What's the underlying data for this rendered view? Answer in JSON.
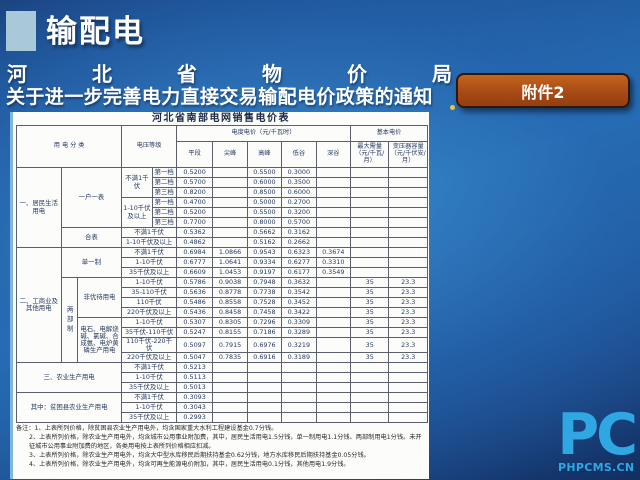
{
  "header": {
    "title": "输配电",
    "subtitle_line1": "河北省物价局",
    "subtitle_line2": "关于进一步完善电力直接交易输配电价政策的通知",
    "badge_label": "附件2"
  },
  "colors": {
    "background_blue": "#2570b6",
    "badge_orange": "#a84a14",
    "title_square_blue": "#a9c8d8",
    "logo_blue": "#2fa7e3"
  },
  "table": {
    "title": "河北省南部电网销售电价表",
    "header_rows": [
      [
        {
          "t": "用  电  分  类",
          "cs": 3,
          "rs": 2
        },
        {
          "t": "电压等级",
          "cs": 2,
          "rs": 2
        },
        {
          "t": "电度电价（元/千瓦时）",
          "cs": 5
        },
        {
          "t": "基本电价",
          "cs": 2
        }
      ],
      [
        {
          "t": "平段"
        },
        {
          "t": "尖峰"
        },
        {
          "t": "高峰"
        },
        {
          "t": "低谷"
        },
        {
          "t": "深谷"
        },
        {
          "t": "最大需量（元/千瓦/月）"
        },
        {
          "t": "变压器容量（元/千伏安/月）"
        }
      ]
    ],
    "body_rows": [
      [
        {
          "t": "一、居民生活用电",
          "rs": 8
        },
        {
          "t": "一户一表",
          "cs": 2,
          "rs": 6
        },
        {
          "t": "不满1千伏",
          "rs": 3
        },
        {
          "t": "第一档"
        },
        {
          "t": "0.5200",
          "c": "num"
        },
        {
          "t": ""
        },
        {
          "t": "0.5500",
          "c": "num"
        },
        {
          "t": "0.3000",
          "c": "num"
        },
        {
          "t": ""
        },
        {
          "t": ""
        },
        {
          "t": ""
        }
      ],
      [
        {
          "t": "第二档"
        },
        {
          "t": "0.5700",
          "c": "num"
        },
        {
          "t": ""
        },
        {
          "t": "0.6000",
          "c": "num"
        },
        {
          "t": "0.3500",
          "c": "num"
        },
        {
          "t": ""
        },
        {
          "t": ""
        },
        {
          "t": ""
        }
      ],
      [
        {
          "t": "第三档"
        },
        {
          "t": "0.8200",
          "c": "num"
        },
        {
          "t": ""
        },
        {
          "t": "0.8500",
          "c": "num"
        },
        {
          "t": "0.6000",
          "c": "num"
        },
        {
          "t": ""
        },
        {
          "t": ""
        },
        {
          "t": ""
        }
      ],
      [
        {
          "t": "1-10千伏及以上",
          "rs": 3
        },
        {
          "t": "第一档"
        },
        {
          "t": "0.4700",
          "c": "num"
        },
        {
          "t": ""
        },
        {
          "t": "0.5000",
          "c": "num"
        },
        {
          "t": "0.2700",
          "c": "num"
        },
        {
          "t": ""
        },
        {
          "t": ""
        },
        {
          "t": ""
        }
      ],
      [
        {
          "t": "第二档"
        },
        {
          "t": "0.5200",
          "c": "num"
        },
        {
          "t": ""
        },
        {
          "t": "0.5500",
          "c": "num"
        },
        {
          "t": "0.3200",
          "c": "num"
        },
        {
          "t": ""
        },
        {
          "t": ""
        },
        {
          "t": ""
        }
      ],
      [
        {
          "t": "第三档"
        },
        {
          "t": "0.7700",
          "c": "num"
        },
        {
          "t": ""
        },
        {
          "t": "0.8000",
          "c": "num"
        },
        {
          "t": "0.5700",
          "c": "num"
        },
        {
          "t": ""
        },
        {
          "t": ""
        },
        {
          "t": ""
        }
      ],
      [
        {
          "t": "合表",
          "cs": 2,
          "rs": 2
        },
        {
          "t": "不满1千伏",
          "cs": 2
        },
        {
          "t": "0.5362",
          "c": "num"
        },
        {
          "t": ""
        },
        {
          "t": "0.5662",
          "c": "num"
        },
        {
          "t": "0.3162",
          "c": "num"
        },
        {
          "t": ""
        },
        {
          "t": ""
        },
        {
          "t": ""
        }
      ],
      [
        {
          "t": "1-10千伏及以上",
          "cs": 2
        },
        {
          "t": "0.4862",
          "c": "num"
        },
        {
          "t": ""
        },
        {
          "t": "0.5162",
          "c": "num"
        },
        {
          "t": "0.2662",
          "c": "num"
        },
        {
          "t": ""
        },
        {
          "t": ""
        },
        {
          "t": ""
        }
      ],
      [
        {
          "t": "二、工商业及其他用电",
          "rs": 11
        },
        {
          "t": "单一制",
          "cs": 2,
          "rs": 3
        },
        {
          "t": "不满1千伏",
          "cs": 2
        },
        {
          "t": "0.6984",
          "c": "num"
        },
        {
          "t": "1.0866",
          "c": "num"
        },
        {
          "t": "0.9543",
          "c": "num"
        },
        {
          "t": "0.6323",
          "c": "num"
        },
        {
          "t": "0.3674",
          "c": "num"
        },
        {
          "t": ""
        },
        {
          "t": ""
        }
      ],
      [
        {
          "t": "1-10千伏",
          "cs": 2
        },
        {
          "t": "0.6777",
          "c": "num"
        },
        {
          "t": "1.0641",
          "c": "num"
        },
        {
          "t": "0.9334",
          "c": "num"
        },
        {
          "t": "0.6277",
          "c": "num"
        },
        {
          "t": "0.3310",
          "c": "num"
        },
        {
          "t": ""
        },
        {
          "t": ""
        }
      ],
      [
        {
          "t": "35千伏及以上",
          "cs": 2
        },
        {
          "t": "0.6609",
          "c": "num"
        },
        {
          "t": "1.0453",
          "c": "num"
        },
        {
          "t": "0.9197",
          "c": "num"
        },
        {
          "t": "0.6177",
          "c": "num"
        },
        {
          "t": "0.3549",
          "c": "num"
        },
        {
          "t": ""
        },
        {
          "t": ""
        }
      ],
      [
        {
          "t": "两部制",
          "rs": 8,
          "c": "vert"
        },
        {
          "t": "非优待用电",
          "rs": 4
        },
        {
          "t": "1-10千伏",
          "cs": 2
        },
        {
          "t": "0.5786",
          "c": "num"
        },
        {
          "t": "0.9038",
          "c": "num"
        },
        {
          "t": "0.7948",
          "c": "num"
        },
        {
          "t": "0.3632",
          "c": "num"
        },
        {
          "t": ""
        },
        {
          "t": "35",
          "c": "num"
        },
        {
          "t": "23.3",
          "c": "num"
        }
      ],
      [
        {
          "t": "35-110千伏",
          "cs": 2
        },
        {
          "t": "0.5636",
          "c": "num"
        },
        {
          "t": "0.8778",
          "c": "num"
        },
        {
          "t": "0.7738",
          "c": "num"
        },
        {
          "t": "0.3542",
          "c": "num"
        },
        {
          "t": ""
        },
        {
          "t": "35",
          "c": "num"
        },
        {
          "t": "23.3",
          "c": "num"
        }
      ],
      [
        {
          "t": "110千伏",
          "cs": 2
        },
        {
          "t": "0.5486",
          "c": "num"
        },
        {
          "t": "0.8558",
          "c": "num"
        },
        {
          "t": "0.7528",
          "c": "num"
        },
        {
          "t": "0.3452",
          "c": "num"
        },
        {
          "t": ""
        },
        {
          "t": "35",
          "c": "num"
        },
        {
          "t": "23.3",
          "c": "num"
        }
      ],
      [
        {
          "t": "220千伏及以上",
          "cs": 2
        },
        {
          "t": "0.5436",
          "c": "num"
        },
        {
          "t": "0.8458",
          "c": "num"
        },
        {
          "t": "0.7458",
          "c": "num"
        },
        {
          "t": "0.3422",
          "c": "num"
        },
        {
          "t": ""
        },
        {
          "t": "35",
          "c": "num"
        },
        {
          "t": "23.3",
          "c": "num"
        }
      ],
      [
        {
          "t": "电石、电解烧碱、氯碱、合成氨、电炉黄磷生产用电",
          "rs": 4
        },
        {
          "t": "1-10千伏",
          "cs": 2
        },
        {
          "t": "0.5307",
          "c": "num"
        },
        {
          "t": "0.8305",
          "c": "num"
        },
        {
          "t": "0.7296",
          "c": "num"
        },
        {
          "t": "0.3309",
          "c": "num"
        },
        {
          "t": ""
        },
        {
          "t": "35",
          "c": "num"
        },
        {
          "t": "23.3",
          "c": "num"
        }
      ],
      [
        {
          "t": "35千伏-110千伏",
          "cs": 2
        },
        {
          "t": "0.5247",
          "c": "num"
        },
        {
          "t": "0.8155",
          "c": "num"
        },
        {
          "t": "0.7186",
          "c": "num"
        },
        {
          "t": "0.3289",
          "c": "num"
        },
        {
          "t": ""
        },
        {
          "t": "35",
          "c": "num"
        },
        {
          "t": "23.3",
          "c": "num"
        }
      ],
      [
        {
          "t": "110千伏-220千伏",
          "cs": 2
        },
        {
          "t": "0.5097",
          "c": "num"
        },
        {
          "t": "0.7915",
          "c": "num"
        },
        {
          "t": "0.6976",
          "c": "num"
        },
        {
          "t": "0.3219",
          "c": "num"
        },
        {
          "t": ""
        },
        {
          "t": "35",
          "c": "num"
        },
        {
          "t": "23.3",
          "c": "num"
        }
      ],
      [
        {
          "t": "220千伏及以上",
          "cs": 2
        },
        {
          "t": "0.5047",
          "c": "num"
        },
        {
          "t": "0.7835",
          "c": "num"
        },
        {
          "t": "0.6916",
          "c": "num"
        },
        {
          "t": "0.3189",
          "c": "num"
        },
        {
          "t": ""
        },
        {
          "t": "35",
          "c": "num"
        },
        {
          "t": "23.3",
          "c": "num"
        }
      ],
      [
        {
          "t": "三、农业生产用电",
          "cs": 3,
          "rs": 3
        },
        {
          "t": "不满1千伏",
          "cs": 2
        },
        {
          "t": "0.5213",
          "c": "num"
        },
        {
          "t": ""
        },
        {
          "t": ""
        },
        {
          "t": ""
        },
        {
          "t": ""
        },
        {
          "t": ""
        },
        {
          "t": ""
        }
      ],
      [
        {
          "t": "1-10千伏",
          "cs": 2
        },
        {
          "t": "0.5113",
          "c": "num"
        },
        {
          "t": ""
        },
        {
          "t": ""
        },
        {
          "t": ""
        },
        {
          "t": ""
        },
        {
          "t": ""
        },
        {
          "t": ""
        }
      ],
      [
        {
          "t": "35千伏及以上",
          "cs": 2
        },
        {
          "t": "0.5013",
          "c": "num"
        },
        {
          "t": ""
        },
        {
          "t": ""
        },
        {
          "t": ""
        },
        {
          "t": ""
        },
        {
          "t": ""
        },
        {
          "t": ""
        }
      ],
      [
        {
          "t": "其中：贫困县农业生产用电",
          "cs": 3,
          "rs": 3
        },
        {
          "t": "不满1千伏",
          "cs": 2
        },
        {
          "t": "0.3093",
          "c": "num"
        },
        {
          "t": ""
        },
        {
          "t": ""
        },
        {
          "t": ""
        },
        {
          "t": ""
        },
        {
          "t": ""
        },
        {
          "t": ""
        }
      ],
      [
        {
          "t": "1-10千伏",
          "cs": 2
        },
        {
          "t": "0.3043",
          "c": "num"
        },
        {
          "t": ""
        },
        {
          "t": ""
        },
        {
          "t": ""
        },
        {
          "t": ""
        },
        {
          "t": ""
        },
        {
          "t": ""
        }
      ],
      [
        {
          "t": "35千伏及以上",
          "cs": 2
        },
        {
          "t": "0.2993",
          "c": "num"
        },
        {
          "t": ""
        },
        {
          "t": ""
        },
        {
          "t": ""
        },
        {
          "t": ""
        },
        {
          "t": ""
        },
        {
          "t": ""
        }
      ]
    ],
    "notes": [
      "备注：1、上表所列价格，除贫困县农业生产用电外，均含国家重大水利工程建设基金0.7分钱。",
      "2、上表所列价格，除农业生产用电外，均含城市公用事业附加费，其中，居民生活用电1.5分钱，单一制用电1.1分钱、两部制用电1分钱。未开征城市公用事业附加费的地区，各类用电按上表所列价格相应扣减。",
      "3、上表所列价格，除农业生产用电外，均含大中型水库移民后期扶持基金0.62分钱，地方水库移民后期扶持基金0.05分钱。",
      "4、上表所列价格，除农业生产用电外，均含可再生能源电价附加，其中，居民生活用电0.1分钱，其他用电1.9分钱。"
    ]
  },
  "logo": {
    "text": "PC",
    "subtext": "PHPCMS.CN"
  }
}
